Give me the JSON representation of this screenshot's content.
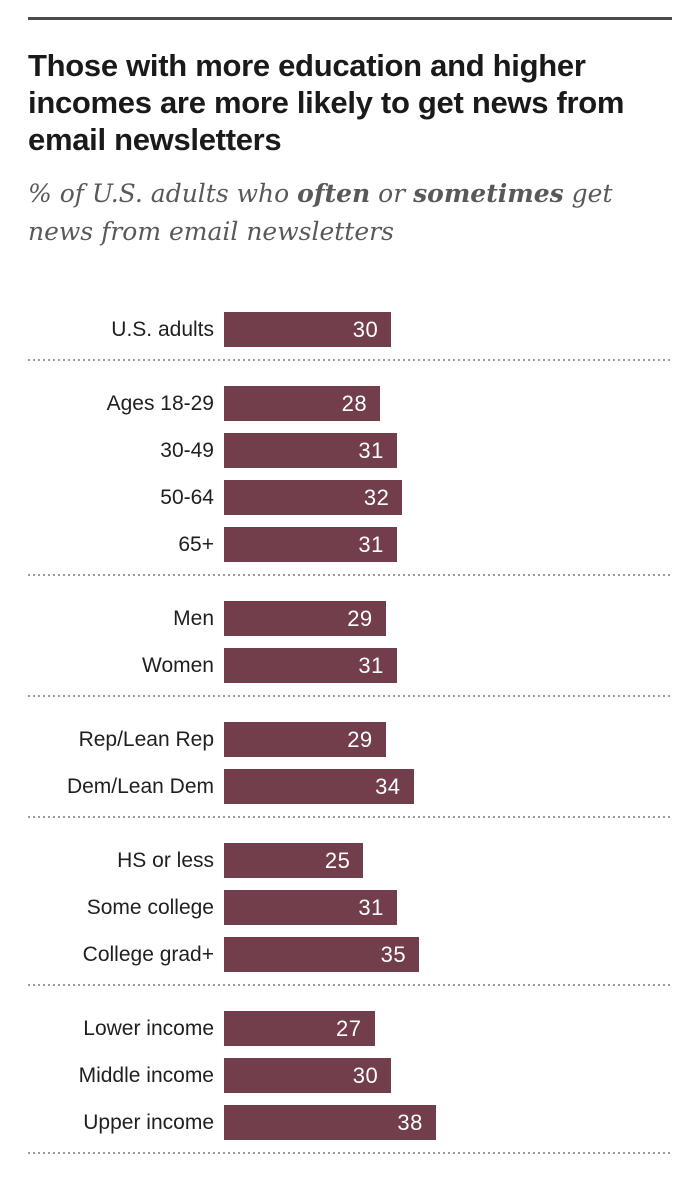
{
  "header": {
    "title": "Those with more education and higher incomes are more likely to get news from email newsletters",
    "subtitle": {
      "part1": "% of U.S. adults who ",
      "emph1": "often",
      "part2": " or ",
      "emph2": "sometimes",
      "part3": " get news from email newsletters"
    }
  },
  "chart_data": {
    "type": "bar",
    "orientation": "horizontal",
    "title": "Those with more education and higher incomes are more likely to get news from email newsletters",
    "subtitle": "% of U.S. adults who often or sometimes get news from email newsletters",
    "xlim": [
      0,
      40
    ],
    "bar_color": "#723e4b",
    "value_label_color": "#ffffff",
    "separator_style": "dotted",
    "legend": "none",
    "grid": "off",
    "groups": [
      {
        "rows": [
          {
            "label": "U.S. adults",
            "value": 30
          }
        ]
      },
      {
        "rows": [
          {
            "label": "Ages 18-29",
            "value": 28
          },
          {
            "label": "30-49",
            "value": 31
          },
          {
            "label": "50-64",
            "value": 32
          },
          {
            "label": "65+",
            "value": 31
          }
        ]
      },
      {
        "rows": [
          {
            "label": "Men",
            "value": 29
          },
          {
            "label": "Women",
            "value": 31
          }
        ]
      },
      {
        "rows": [
          {
            "label": "Rep/Lean Rep",
            "value": 29
          },
          {
            "label": "Dem/Lean Dem",
            "value": 34
          }
        ]
      },
      {
        "rows": [
          {
            "label": "HS or less",
            "value": 25
          },
          {
            "label": "Some college",
            "value": 31
          },
          {
            "label": "College grad+",
            "value": 35
          }
        ]
      },
      {
        "rows": [
          {
            "label": "Lower income",
            "value": 27
          },
          {
            "label": "Middle income",
            "value": 30
          },
          {
            "label": "Upper income",
            "value": 38
          }
        ]
      }
    ]
  }
}
